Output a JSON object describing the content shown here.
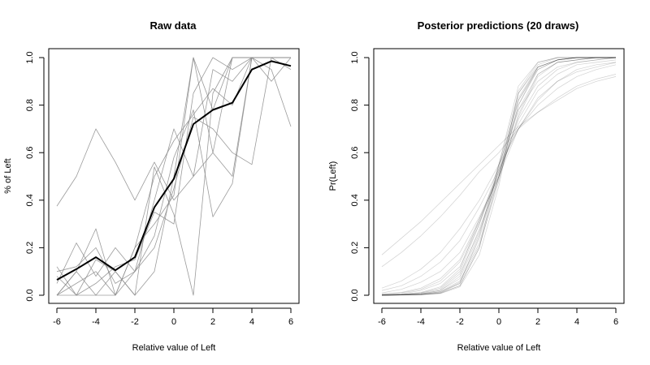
{
  "chart_data": [
    {
      "type": "line",
      "title": "Raw data",
      "xlabel": "Relative value of Left",
      "ylabel": "% of Left",
      "xlim": [
        -6,
        6
      ],
      "ylim": [
        0,
        1
      ],
      "xticks": [
        "-6",
        "-4",
        "-2",
        "0",
        "2",
        "4",
        "6"
      ],
      "yticks": [
        "0.0",
        "0.2",
        "0.4",
        "0.6",
        "0.8",
        "1.0"
      ],
      "grid": false,
      "x": [
        -6,
        -5,
        -4,
        -3,
        -2,
        -1,
        0,
        1,
        2,
        3,
        4,
        5,
        6
      ],
      "mean_series": {
        "values": [
          0.065,
          0.11,
          0.16,
          0.105,
          0.16,
          0.37,
          0.49,
          0.72,
          0.78,
          0.81,
          0.95,
          0.985,
          0.965
        ],
        "color": "#000000"
      },
      "individual_series": [
        {
          "values": [
            0.375,
            0.5,
            0.7,
            0.56,
            0.4,
            0.56,
            0.4,
            0.5,
            0.6,
            0.5,
            1.0,
            1.0,
            1.0
          ]
        },
        {
          "values": [
            0.0,
            0.1,
            0.28,
            0.0,
            0.2,
            0.3,
            0.42,
            1.0,
            0.78,
            1.0,
            1.0,
            0.95,
            0.71
          ]
        },
        {
          "values": [
            0.12,
            0.0,
            0.0,
            0.1,
            0.0,
            0.54,
            0.34,
            0.0,
            0.85,
            1.0,
            1.0,
            1.0,
            1.0
          ]
        },
        {
          "values": [
            0.05,
            0.22,
            0.08,
            0.2,
            0.1,
            0.25,
            0.58,
            0.78,
            0.33,
            0.47,
            1.0,
            1.0,
            0.95
          ]
        },
        {
          "values": [
            0.0,
            0.1,
            0.0,
            0.0,
            0.2,
            0.5,
            0.65,
            0.76,
            0.87,
            0.8,
            1.0,
            0.9,
            1.0
          ]
        },
        {
          "values": [
            0.08,
            0.0,
            0.15,
            0.1,
            0.0,
            0.1,
            0.5,
            1.0,
            0.6,
            1.0,
            1.0,
            1.0,
            1.0
          ]
        },
        {
          "values": [
            0.0,
            0.05,
            0.1,
            0.0,
            0.1,
            0.4,
            0.7,
            0.5,
            0.95,
            0.9,
            1.0,
            1.0,
            1.0
          ]
        },
        {
          "values": [
            0.1,
            0.12,
            0.2,
            0.05,
            0.1,
            0.2,
            0.45,
            0.75,
            0.7,
            0.6,
            0.55,
            1.0,
            1.0
          ]
        },
        {
          "values": [
            0.0,
            0.0,
            0.05,
            0.12,
            0.15,
            0.35,
            0.3,
            0.85,
            1.0,
            0.95,
            1.0,
            1.0,
            1.0
          ]
        }
      ]
    },
    {
      "type": "line",
      "title": "Posterior predictions (20 draws)",
      "xlabel": "Relative value of Left",
      "ylabel": "Pr(Left)",
      "xlim": [
        -6,
        6
      ],
      "ylim": [
        0,
        1
      ],
      "xticks": [
        "-6",
        "-4",
        "-2",
        "0",
        "2",
        "4",
        "6"
      ],
      "yticks": [
        "0.0",
        "0.2",
        "0.4",
        "0.6",
        "0.8",
        "1.0"
      ],
      "grid": false,
      "x": [
        -6,
        -5,
        -4,
        -3,
        -2,
        -1,
        0,
        1,
        2,
        3,
        4,
        5,
        6
      ],
      "curves": [
        {
          "values": [
            0.0,
            0.001,
            0.003,
            0.01,
            0.05,
            0.25,
            0.55,
            0.85,
            0.96,
            0.99,
            1.0,
            1.0,
            1.0
          ]
        },
        {
          "values": [
            0.0,
            0.002,
            0.006,
            0.02,
            0.08,
            0.28,
            0.5,
            0.8,
            0.95,
            0.99,
            1.0,
            1.0,
            1.0
          ]
        },
        {
          "values": [
            0.001,
            0.003,
            0.01,
            0.03,
            0.1,
            0.3,
            0.52,
            0.78,
            0.93,
            0.98,
            0.99,
            1.0,
            1.0
          ]
        },
        {
          "values": [
            0.0,
            0.001,
            0.004,
            0.015,
            0.06,
            0.22,
            0.5,
            0.82,
            0.96,
            0.99,
            1.0,
            1.0,
            1.0
          ]
        },
        {
          "values": [
            0.0,
            0.001,
            0.002,
            0.008,
            0.04,
            0.2,
            0.55,
            0.88,
            0.98,
            1.0,
            1.0,
            1.0,
            1.0
          ]
        },
        {
          "values": [
            0.001,
            0.004,
            0.012,
            0.035,
            0.11,
            0.32,
            0.5,
            0.75,
            0.92,
            0.98,
            0.99,
            1.0,
            1.0
          ]
        },
        {
          "values": [
            0.0,
            0.002,
            0.005,
            0.015,
            0.05,
            0.21,
            0.48,
            0.8,
            0.96,
            0.99,
            1.0,
            1.0,
            1.0
          ]
        },
        {
          "values": [
            0.0,
            0.001,
            0.003,
            0.01,
            0.04,
            0.2,
            0.5,
            0.85,
            0.97,
            1.0,
            1.0,
            1.0,
            1.0
          ]
        },
        {
          "values": [
            0.002,
            0.006,
            0.02,
            0.05,
            0.12,
            0.3,
            0.55,
            0.78,
            0.9,
            0.96,
            0.98,
            0.99,
            1.0
          ]
        },
        {
          "values": [
            0.0,
            0.001,
            0.003,
            0.012,
            0.055,
            0.24,
            0.53,
            0.83,
            0.96,
            0.99,
            1.0,
            1.0,
            1.0
          ]
        },
        {
          "values": [
            0.005,
            0.012,
            0.03,
            0.07,
            0.15,
            0.32,
            0.52,
            0.72,
            0.86,
            0.93,
            0.97,
            0.98,
            0.99
          ]
        },
        {
          "values": [
            0.01,
            0.025,
            0.055,
            0.1,
            0.18,
            0.33,
            0.5,
            0.7,
            0.83,
            0.9,
            0.95,
            0.97,
            0.98
          ]
        },
        {
          "values": [
            0.03,
            0.06,
            0.11,
            0.18,
            0.28,
            0.4,
            0.55,
            0.7,
            0.8,
            0.87,
            0.92,
            0.95,
            0.97
          ]
        },
        {
          "values": [
            0.12,
            0.18,
            0.25,
            0.33,
            0.42,
            0.52,
            0.6,
            0.7,
            0.77,
            0.83,
            0.88,
            0.91,
            0.93
          ]
        },
        {
          "values": [
            0.17,
            0.24,
            0.31,
            0.39,
            0.47,
            0.55,
            0.63,
            0.71,
            0.77,
            0.82,
            0.87,
            0.9,
            0.92
          ]
        },
        {
          "values": [
            0.02,
            0.04,
            0.08,
            0.14,
            0.23,
            0.37,
            0.53,
            0.7,
            0.82,
            0.9,
            0.94,
            0.96,
            0.98
          ]
        },
        {
          "values": [
            0.0,
            0.002,
            0.006,
            0.02,
            0.07,
            0.26,
            0.54,
            0.82,
            0.95,
            0.99,
            1.0,
            1.0,
            1.0
          ]
        },
        {
          "values": [
            0.001,
            0.003,
            0.009,
            0.025,
            0.09,
            0.27,
            0.49,
            0.76,
            0.93,
            0.98,
            0.99,
            1.0,
            1.0
          ]
        },
        {
          "values": [
            0.0,
            0.001,
            0.002,
            0.007,
            0.035,
            0.17,
            0.46,
            0.86,
            0.98,
            1.0,
            1.0,
            1.0,
            1.0
          ]
        },
        {
          "values": [
            0.004,
            0.01,
            0.025,
            0.06,
            0.14,
            0.31,
            0.51,
            0.74,
            0.88,
            0.95,
            0.98,
            0.99,
            1.0
          ]
        }
      ]
    }
  ]
}
